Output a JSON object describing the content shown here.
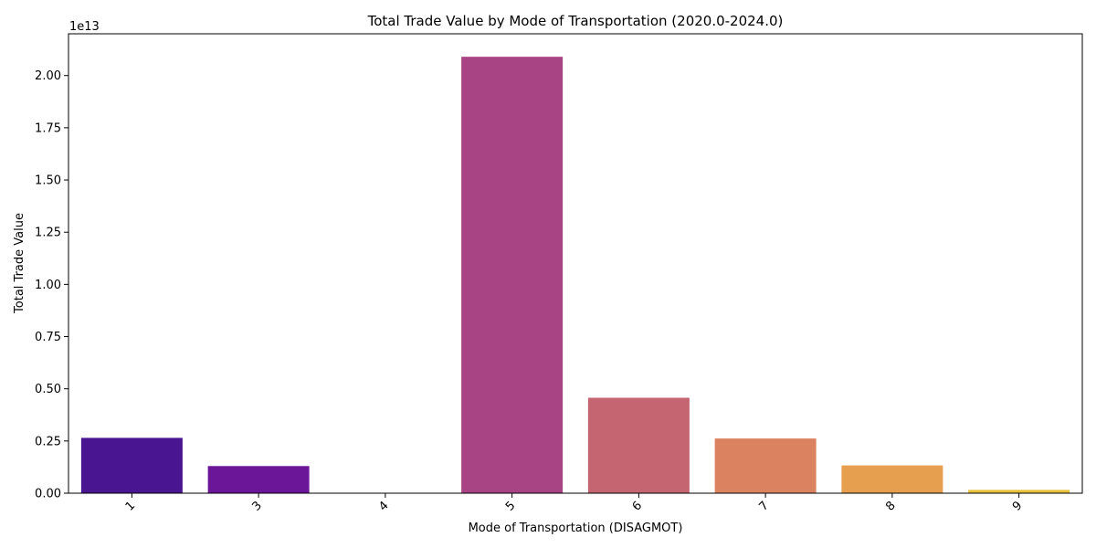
{
  "chart_data": {
    "type": "bar",
    "title": "Total Trade Value by Mode of Transportation (2020.0-2024.0)",
    "xlabel": "Mode of Transportation (DISAGMOT)",
    "ylabel": "Total Trade Value",
    "offset_label": "1e13",
    "categories": [
      "1",
      "3",
      "4",
      "5",
      "6",
      "7",
      "8",
      "9"
    ],
    "values": [
      2650000000000.0,
      1300000000000.0,
      2000000000.0,
      20900000000000.0,
      4570000000000.0,
      2620000000000.0,
      1330000000000.0,
      160000000000.0
    ],
    "ylim": [
      0,
      22000000000000.0
    ],
    "yticks": [
      0,
      2500000000000.0,
      5000000000000.0,
      7500000000000.0,
      10000000000000.0,
      12500000000000.0,
      15000000000000.0,
      17500000000000.0,
      20000000000000.0
    ],
    "ytick_labels": [
      "0.00",
      "0.25",
      "0.50",
      "0.75",
      "1.00",
      "1.25",
      "1.50",
      "1.75",
      "2.00"
    ],
    "colors": [
      "#4a1591",
      "#6b1599",
      "#8e2190",
      "#a84483",
      "#c56571",
      "#db8360",
      "#e59f4e",
      "#e8c13c"
    ],
    "grid": false,
    "legend": "none"
  }
}
